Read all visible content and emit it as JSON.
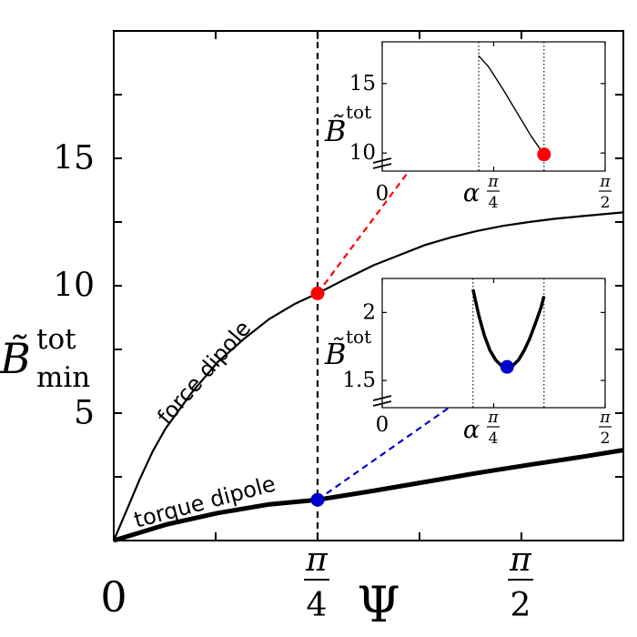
{
  "chart_data": [
    {
      "id": "main",
      "type": "line",
      "xlabel": "Ψ",
      "ylabel": {
        "base": "B̃",
        "sup": "tot",
        "sub": "min"
      },
      "xlim": [
        0,
        1.9635
      ],
      "ylim": [
        0,
        20
      ],
      "x_ticks": [
        {
          "value": 0,
          "label": "0"
        },
        {
          "value": 0.7854,
          "label": "π/4",
          "num": "π",
          "den": "4"
        },
        {
          "value": 1.5708,
          "label": "π/2",
          "num": "π",
          "den": "2"
        }
      ],
      "y_ticks": [
        {
          "value": 5,
          "label": "5"
        },
        {
          "value": 10,
          "label": "10"
        },
        {
          "value": 15,
          "label": "15"
        }
      ],
      "vline": {
        "x": 0.7854,
        "style": "dashed"
      },
      "series": [
        {
          "name": "force dipole",
          "width": "thin",
          "x": [
            0,
            0.05,
            0.1,
            0.15,
            0.2,
            0.3,
            0.4,
            0.5,
            0.6,
            0.7,
            0.7854,
            0.9,
            1.0,
            1.1,
            1.2,
            1.3,
            1.4,
            1.5,
            1.6,
            1.7,
            1.8,
            1.9,
            1.9635
          ],
          "y": [
            0,
            1.2,
            2.4,
            3.5,
            4.4,
            5.8,
            7.0,
            7.9,
            8.7,
            9.3,
            9.7,
            10.3,
            10.8,
            11.2,
            11.6,
            11.9,
            12.15,
            12.35,
            12.5,
            12.63,
            12.73,
            12.82,
            12.88
          ]
        },
        {
          "name": "torque dipole",
          "width": "thick",
          "x": [
            0,
            0.2,
            0.4,
            0.6,
            0.7854,
            1.0,
            1.2,
            1.4,
            1.6,
            1.8,
            1.9635
          ],
          "y": [
            0,
            0.62,
            1.08,
            1.42,
            1.6,
            1.95,
            2.3,
            2.65,
            2.97,
            3.28,
            3.55
          ]
        }
      ],
      "markers": [
        {
          "x": 0.7854,
          "y": 9.7,
          "color": "#ff0000"
        },
        {
          "x": 0.7854,
          "y": 1.6,
          "color": "#0000cc"
        }
      ]
    },
    {
      "id": "inset-top",
      "type": "line",
      "xlabel": "α",
      "ylabel": {
        "base": "B̃",
        "sup": "tot"
      },
      "xlim": [
        0,
        1.5708
      ],
      "ylim": [
        8.7,
        18
      ],
      "axis_break": true,
      "x_ticks": [
        {
          "value": 0,
          "label": "0"
        },
        {
          "value": 0.7854,
          "label": "π/4",
          "num": "π",
          "den": "4"
        },
        {
          "value": 1.5708,
          "label": "π/2",
          "num": "π",
          "den": "2"
        }
      ],
      "y_ticks": [
        {
          "value": 10,
          "label": "10"
        },
        {
          "value": 15,
          "label": "15"
        }
      ],
      "vlines": [
        0.68,
        1.14
      ],
      "series": [
        {
          "width": "thin",
          "x": [
            0.68,
            0.75,
            0.85,
            0.95,
            1.05,
            1.14
          ],
          "y": [
            17.0,
            16.2,
            14.6,
            12.9,
            11.2,
            9.9
          ]
        }
      ],
      "marker": {
        "x": 1.14,
        "y": 9.9,
        "color": "#ff0000"
      },
      "connector_color": "#ff0000"
    },
    {
      "id": "inset-bottom",
      "type": "line",
      "xlabel": "α",
      "ylabel": {
        "base": "B̃",
        "sup": "tot"
      },
      "xlim": [
        0,
        1.5708
      ],
      "ylim": [
        1.3,
        2.25
      ],
      "axis_break": true,
      "x_ticks": [
        {
          "value": 0,
          "label": "0"
        },
        {
          "value": 0.7854,
          "label": "π/4",
          "num": "π",
          "den": "4"
        },
        {
          "value": 1.5708,
          "label": "π/2",
          "num": "π",
          "den": "2"
        }
      ],
      "y_ticks": [
        {
          "value": 1.5,
          "label": "1.5"
        },
        {
          "value": 2,
          "label": "2"
        }
      ],
      "vlines": [
        0.64,
        1.14
      ],
      "series": [
        {
          "width": "thick",
          "x": [
            0.64,
            0.68,
            0.72,
            0.76,
            0.8,
            0.84,
            0.88,
            0.92,
            0.96,
            1.0,
            1.04,
            1.08,
            1.12,
            1.14
          ],
          "y": [
            2.17,
            1.98,
            1.83,
            1.72,
            1.65,
            1.61,
            1.6,
            1.61,
            1.65,
            1.72,
            1.81,
            1.92,
            2.04,
            2.12
          ]
        }
      ],
      "marker": {
        "x": 0.88,
        "y": 1.6,
        "color": "#0000cc"
      },
      "connector_color": "#0000cc"
    }
  ]
}
